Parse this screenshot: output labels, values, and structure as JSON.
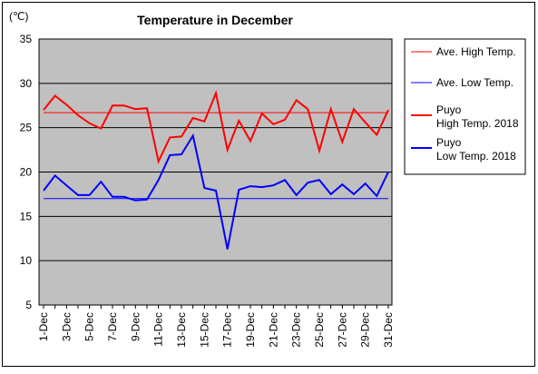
{
  "chart_data": {
    "type": "line",
    "title": "Temperature in December",
    "ylabel": "(℃)",
    "xlabel": "",
    "ylim": [
      5,
      35
    ],
    "yticks": [
      5,
      10,
      15,
      20,
      25,
      30,
      35
    ],
    "grid": true,
    "legend_position": "right",
    "x": [
      "1-Dec",
      "2-Dec",
      "3-Dec",
      "4-Dec",
      "5-Dec",
      "6-Dec",
      "7-Dec",
      "8-Dec",
      "9-Dec",
      "10-Dec",
      "11-Dec",
      "12-Dec",
      "13-Dec",
      "14-Dec",
      "15-Dec",
      "16-Dec",
      "17-Dec",
      "18-Dec",
      "19-Dec",
      "20-Dec",
      "21-Dec",
      "22-Dec",
      "23-Dec",
      "24-Dec",
      "25-Dec",
      "26-Dec",
      "27-Dec",
      "28-Dec",
      "29-Dec",
      "30-Dec",
      "31-Dec"
    ],
    "x_tick_labels": [
      "1-Dec",
      "3-Dec",
      "5-Dec",
      "7-Dec",
      "9-Dec",
      "11-Dec",
      "13-Dec",
      "15-Dec",
      "17-Dec",
      "19-Dec",
      "21-Dec",
      "23-Dec",
      "25-Dec",
      "27-Dec",
      "29-Dec",
      "31-Dec"
    ],
    "series": [
      {
        "name": "Ave. High Temp.",
        "color": "#ff0000",
        "width": 1,
        "values": [
          26.7,
          26.7,
          26.7,
          26.7,
          26.7,
          26.7,
          26.7,
          26.7,
          26.7,
          26.7,
          26.7,
          26.7,
          26.7,
          26.7,
          26.7,
          26.7,
          26.7,
          26.7,
          26.7,
          26.7,
          26.7,
          26.7,
          26.7,
          26.7,
          26.7,
          26.7,
          26.7,
          26.7,
          26.7,
          26.7,
          26.7
        ]
      },
      {
        "name": "Ave. Low Temp.",
        "color": "#0000ff",
        "width": 1,
        "values": [
          17.0,
          17.0,
          17.0,
          17.0,
          17.0,
          17.0,
          17.0,
          17.0,
          17.0,
          17.0,
          17.0,
          17.0,
          17.0,
          17.0,
          17.0,
          17.0,
          17.0,
          17.0,
          17.0,
          17.0,
          17.0,
          17.0,
          17.0,
          17.0,
          17.0,
          17.0,
          17.0,
          17.0,
          17.0,
          17.0,
          17.0
        ]
      },
      {
        "name": "Puyo High Temp. 2018",
        "legend_lines": [
          "Puyo",
          "High Temp. 2018"
        ],
        "color": "#ff0000",
        "width": 2,
        "values": [
          27.0,
          28.6,
          27.6,
          26.4,
          25.5,
          24.9,
          27.5,
          27.5,
          27.1,
          27.2,
          21.2,
          23.9,
          24.0,
          26.1,
          25.7,
          28.9,
          22.5,
          25.8,
          23.5,
          26.6,
          25.4,
          25.9,
          28.1,
          27.1,
          22.4,
          27.1,
          23.4,
          27.1,
          25.6,
          24.2,
          27.0
        ]
      },
      {
        "name": "Puyo Low Temp. 2018",
        "legend_lines": [
          "Puyo",
          "Low Temp. 2018"
        ],
        "color": "#0000ff",
        "width": 2,
        "values": [
          17.9,
          19.6,
          18.5,
          17.4,
          17.4,
          18.9,
          17.2,
          17.2,
          16.8,
          16.9,
          19.1,
          21.9,
          22.0,
          24.1,
          18.2,
          17.9,
          11.3,
          18.0,
          18.4,
          18.3,
          18.5,
          19.1,
          17.4,
          18.8,
          19.1,
          17.5,
          18.6,
          17.5,
          18.7,
          17.3,
          20.0
        ]
      }
    ]
  }
}
